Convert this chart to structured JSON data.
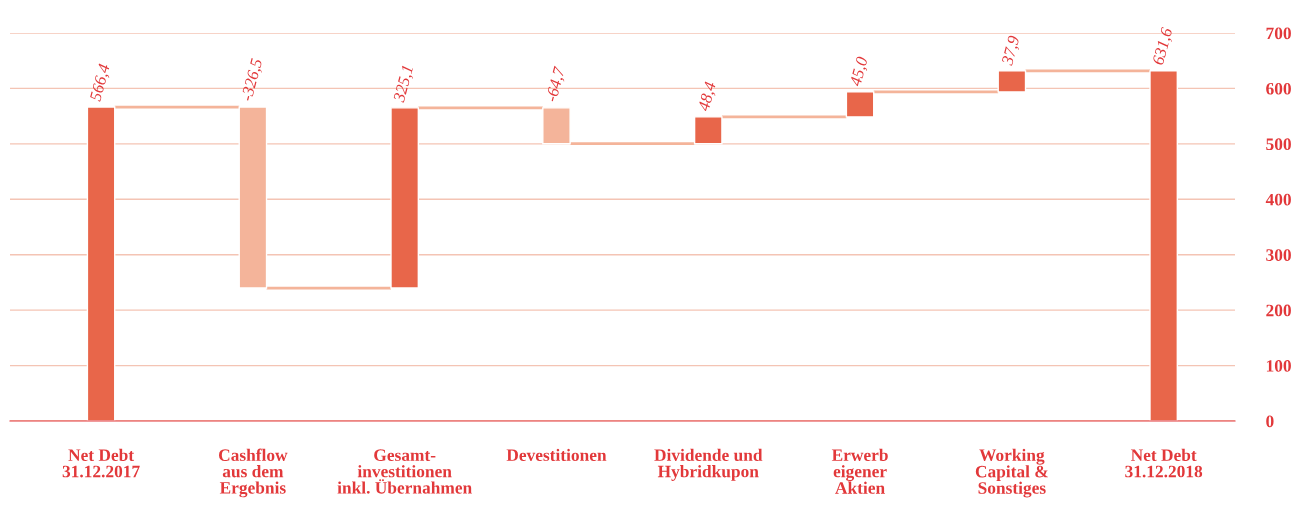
{
  "chart_data": {
    "type": "bar",
    "categories": [
      "Net Debt\n31.12.2017",
      "Cashflow\naus dem\nErgebnis",
      "Gesamt-\ninvestitionen\ninkl. Übernahmen",
      "Devestitionen",
      "Dividende und\nHybridkupon",
      "Erwerb\neigener\nAktien",
      "Working\nCapital &\nSonstiges",
      "Net Debt\n31.12.2018"
    ],
    "values": [
      566.4,
      -326.5,
      325.1,
      -64.7,
      48.4,
      45.0,
      37.9,
      631.6
    ],
    "base": [
      0,
      566.4,
      239.9,
      565.0,
      500.3,
      548.7,
      593.7,
      0
    ],
    "colors": [
      "#e8664a",
      "#f4b49a",
      "#e8664a",
      "#f4b49a",
      "#e8664a",
      "#e8664a",
      "#e8664a",
      "#e8664a"
    ],
    "value_labels": [
      "566,4",
      "-326,5",
      "325,1",
      "-64,7",
      "48,4",
      "45,0",
      "37,9",
      "631,6"
    ],
    "ylim": [
      0,
      700
    ],
    "yticks": [
      0,
      100,
      200,
      300,
      400,
      500,
      600,
      700
    ],
    "grid": "y"
  }
}
